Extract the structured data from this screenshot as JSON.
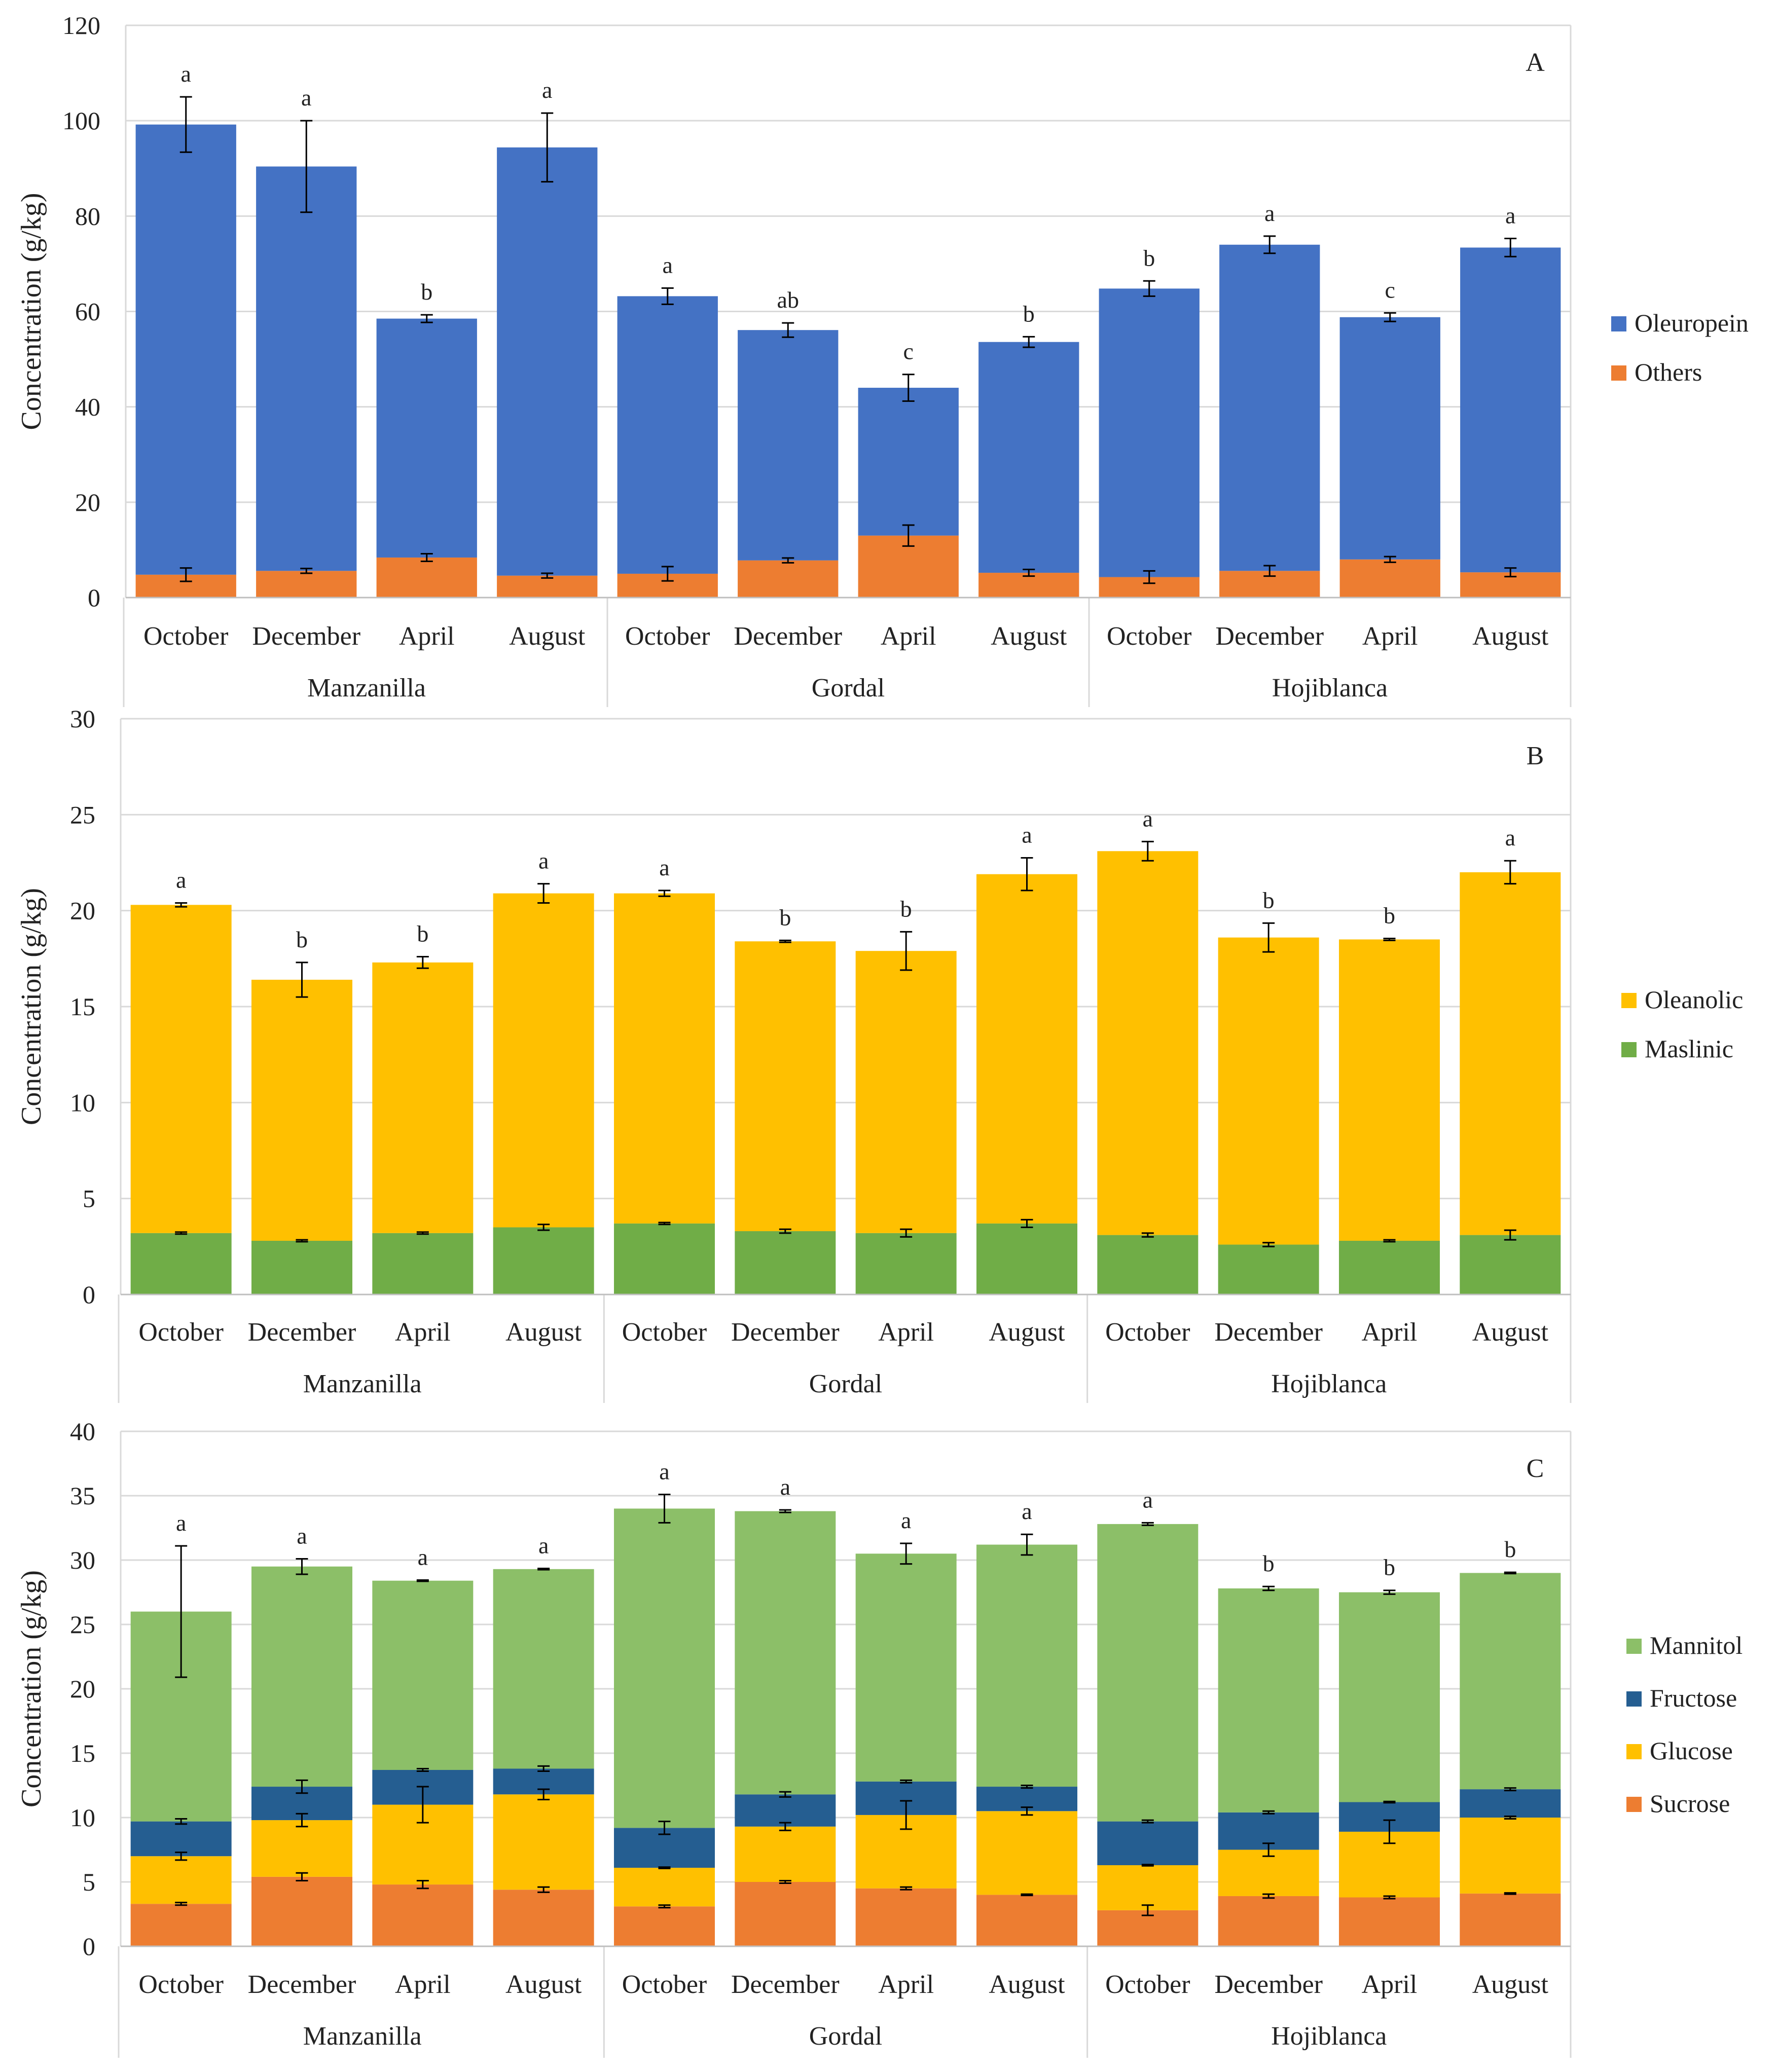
{
  "chart_data": [
    {
      "type": "bar",
      "stacked": true,
      "panel_label": "A",
      "ylabel": "Concentration (g/kg)",
      "ylim": [
        0,
        120
      ],
      "yticks": [
        0,
        20,
        40,
        60,
        80,
        100,
        120
      ],
      "groups": [
        "Manzanilla",
        "Gordal",
        "Hojiblanca"
      ],
      "categories": [
        "October",
        "December",
        "April",
        "August",
        "October",
        "December",
        "April",
        "August",
        "October",
        "December",
        "April",
        "August"
      ],
      "series": [
        {
          "name": "Others",
          "color": "#ED7D31",
          "values": [
            4.8,
            5.6,
            8.4,
            4.6,
            5.0,
            7.8,
            13.0,
            5.2,
            4.3,
            5.6,
            8.0,
            5.3
          ],
          "errors": [
            1.4,
            0.5,
            0.8,
            0.5,
            1.5,
            0.5,
            2.2,
            0.7,
            1.3,
            1.1,
            0.6,
            0.9
          ]
        },
        {
          "name": "Oleuropein",
          "color": "#4472C4",
          "values": [
            94.4,
            84.8,
            50.1,
            89.8,
            58.2,
            48.3,
            31.0,
            48.4,
            60.5,
            68.4,
            50.8,
            68.1
          ],
          "errors": [
            5.8,
            9.6,
            0.8,
            7.2,
            1.7,
            1.5,
            2.8,
            1.1,
            1.6,
            1.8,
            0.9,
            1.9
          ]
        }
      ],
      "letters": [
        "a",
        "a",
        "b",
        "a",
        "a",
        "ab",
        "c",
        "b",
        "b",
        "a",
        "c",
        "a"
      ]
    },
    {
      "type": "bar",
      "stacked": true,
      "panel_label": "B",
      "ylabel": "Concentration (g/kg)",
      "ylim": [
        0,
        30
      ],
      "yticks": [
        0,
        5,
        10,
        15,
        20,
        25,
        30
      ],
      "groups": [
        "Manzanilla",
        "Gordal",
        "Hojiblanca"
      ],
      "categories": [
        "October",
        "December",
        "April",
        "August",
        "October",
        "December",
        "April",
        "August",
        "October",
        "December",
        "April",
        "August"
      ],
      "series": [
        {
          "name": "Maslinic",
          "color": "#70AD47",
          "values": [
            3.2,
            2.8,
            3.2,
            3.5,
            3.7,
            3.3,
            3.2,
            3.7,
            3.1,
            2.6,
            2.8,
            3.1
          ],
          "errors": [
            0.05,
            0.05,
            0.05,
            0.15,
            0.05,
            0.1,
            0.2,
            0.2,
            0.1,
            0.1,
            0.05,
            0.25
          ]
        },
        {
          "name": "Oleanolic",
          "color": "#FFC000",
          "values": [
            17.1,
            13.6,
            14.1,
            17.4,
            17.2,
            15.1,
            14.7,
            18.2,
            20.0,
            16.0,
            15.7,
            18.9
          ],
          "errors": [
            0.1,
            0.9,
            0.3,
            0.5,
            0.15,
            0.05,
            1.0,
            0.85,
            0.5,
            0.75,
            0.05,
            0.6
          ]
        }
      ],
      "letters": [
        "a",
        "b",
        "b",
        "a",
        "a",
        "b",
        "b",
        "a",
        "a",
        "b",
        "b",
        "a"
      ]
    },
    {
      "type": "bar",
      "stacked": true,
      "panel_label": "C",
      "ylabel": "Concentration (g/kg)",
      "ylim": [
        0,
        40
      ],
      "yticks": [
        0,
        5,
        10,
        15,
        20,
        25,
        30,
        35,
        40
      ],
      "groups": [
        "Manzanilla",
        "Gordal",
        "Hojiblanca"
      ],
      "categories": [
        "October",
        "December",
        "April",
        "August",
        "October",
        "December",
        "April",
        "August",
        "October",
        "December",
        "April",
        "August"
      ],
      "series": [
        {
          "name": "Sucrose",
          "color": "#ED7D31",
          "values": [
            3.3,
            5.4,
            4.8,
            4.4,
            3.1,
            5.0,
            4.5,
            4.0,
            2.8,
            3.9,
            3.8,
            4.1
          ],
          "errors": [
            0.1,
            0.3,
            0.3,
            0.2,
            0.1,
            0.1,
            0.1,
            0.05,
            0.4,
            0.15,
            0.1,
            0.05
          ]
        },
        {
          "name": "Glucose",
          "color": "#FFC000",
          "values": [
            3.7,
            4.4,
            6.2,
            7.4,
            3.0,
            4.3,
            5.7,
            6.5,
            3.5,
            3.6,
            5.1,
            5.9
          ],
          "errors": [
            0.3,
            0.5,
            1.4,
            0.4,
            0.05,
            0.3,
            1.1,
            0.3,
            0.05,
            0.5,
            0.9,
            0.1
          ]
        },
        {
          "name": "Fructose",
          "color": "#255E91",
          "values": [
            2.7,
            2.6,
            2.7,
            2.0,
            3.1,
            2.5,
            2.6,
            1.9,
            3.4,
            2.9,
            2.3,
            2.2
          ],
          "errors": [
            0.2,
            0.5,
            0.1,
            0.2,
            0.5,
            0.2,
            0.1,
            0.1,
            0.1,
            0.1,
            0.05,
            0.1
          ]
        },
        {
          "name": "Mannitol",
          "color": "#8CBF68",
          "values": [
            16.3,
            17.1,
            14.7,
            15.5,
            24.8,
            22.0,
            17.7,
            18.8,
            23.1,
            17.4,
            16.3,
            16.8
          ],
          "errors": [
            5.1,
            0.6,
            0.05,
            0.05,
            1.1,
            0.1,
            0.8,
            0.8,
            0.1,
            0.15,
            0.15,
            0.05
          ]
        }
      ],
      "letters": [
        "a",
        "a",
        "a",
        "a",
        "a",
        "a",
        "a",
        "a",
        "a",
        "b",
        "b",
        "b"
      ]
    }
  ]
}
